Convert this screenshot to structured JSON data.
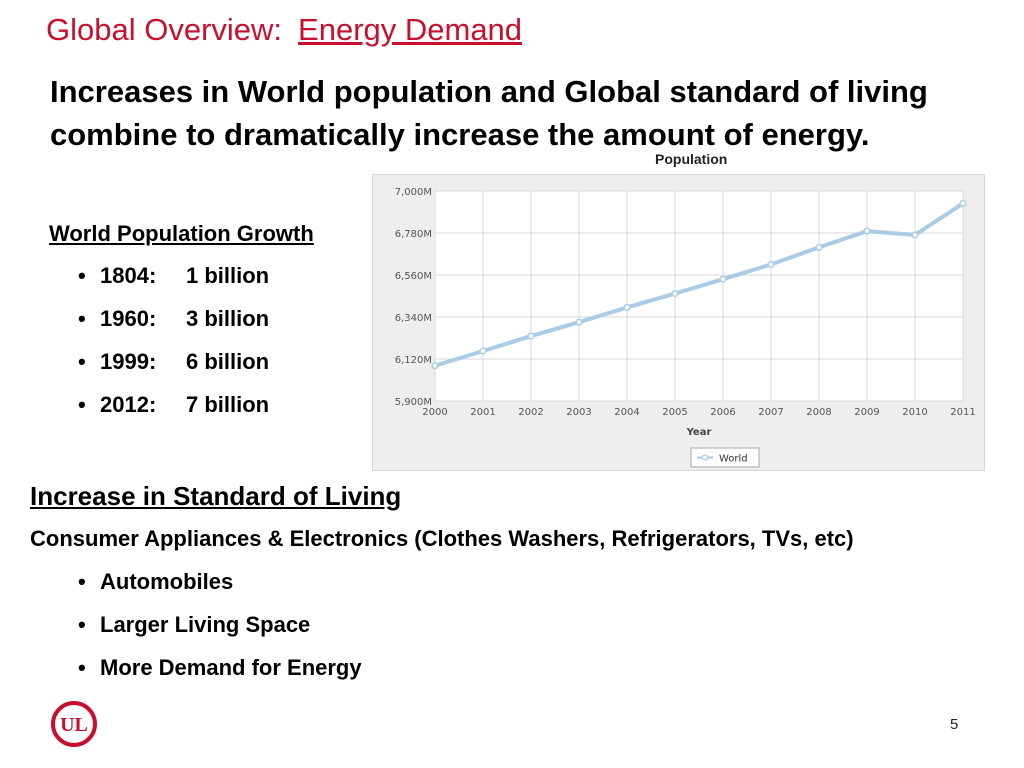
{
  "slide": {
    "title_prefix": "Global Overview:",
    "title_main": "Energy Demand",
    "intro": " Increases in World population and Global standard of living combine to dramatically increase the amount of energy.",
    "population_heading": "World Population Growth",
    "population_items": [
      {
        "year": "1804:",
        "value": "1 billion"
      },
      {
        "year": "1960:",
        "value": "3 billion"
      },
      {
        "year": "1999:",
        "value": "6 billion"
      },
      {
        "year": "2012:",
        "value": "7 billion"
      }
    ],
    "living_heading": "Increase in Standard of Living",
    "consumer_line": "Consumer Appliances & Electronics (Clothes Washers, Refrigerators, TVs, etc)",
    "living_items": [
      "Automobiles",
      "Larger Living Space",
      "More Demand for Energy"
    ],
    "page_number": "5",
    "logo_text": "UL"
  },
  "colors": {
    "title_red": "#c8102e",
    "logo_red": "#c8102e",
    "line_blue": "#a9cbe6",
    "marker_fill": "#ffffff"
  },
  "chart_data": {
    "type": "line",
    "title": "Population",
    "xlabel": "Year",
    "ylabel": "",
    "x": [
      "2000",
      "2001",
      "2002",
      "2003",
      "2004",
      "2005",
      "2006",
      "2007",
      "2008",
      "2009",
      "2010",
      "2011"
    ],
    "series": [
      {
        "name": "World",
        "values": [
          6085,
          6162,
          6240,
          6313,
          6390,
          6463,
          6538,
          6615,
          6705,
          6790,
          6770,
          6935
        ]
      }
    ],
    "ylim": [
      5900,
      7000
    ],
    "yticks": [
      5900,
      6120,
      6340,
      6560,
      6780,
      7000
    ],
    "ytick_labels": [
      "5,900M",
      "6,120M",
      "6,340M",
      "6,560M",
      "6,780M",
      "7,000M"
    ],
    "grid": true,
    "legend": "bottom-center"
  }
}
